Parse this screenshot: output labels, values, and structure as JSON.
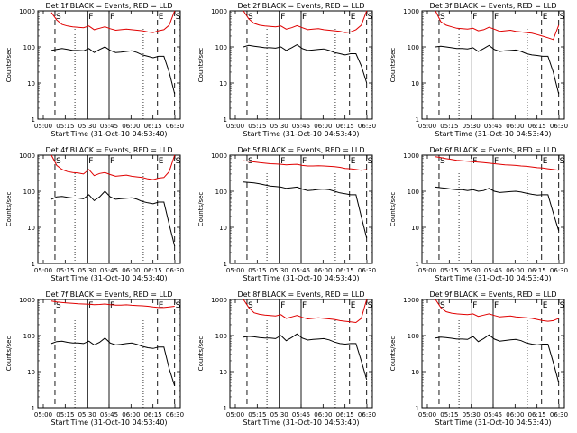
{
  "chart_data": [
    {
      "title": "Det 1f BLACK = Events, RED = LLD",
      "xlabel": "Start Time (31-Oct-10 04:53:40)",
      "ylabel": "Counts/sec",
      "x_ticks": [
        "05:00",
        "05:15",
        "05:30",
        "05:45",
        "06:00",
        "06:15",
        "06:30"
      ],
      "y_ticks": [
        "1",
        "10",
        "100",
        "1000"
      ],
      "yscale": "log",
      "ylim": [
        1,
        1000
      ],
      "type": "line",
      "markers": [
        "S",
        "F",
        "F",
        "E",
        "S"
      ],
      "series": [
        {
          "color": "#e00000",
          "values": [
            900,
            560,
            420,
            380,
            360,
            350,
            340,
            380,
            300,
            330,
            360,
            320,
            290,
            300,
            310,
            300,
            290,
            280,
            260,
            250,
            280,
            300,
            400,
            1000
          ]
        },
        {
          "color": "#000000",
          "values": [
            80,
            85,
            90,
            85,
            80,
            80,
            78,
            90,
            70,
            85,
            100,
            80,
            70,
            72,
            75,
            78,
            70,
            60,
            55,
            50,
            55,
            55,
            20,
            5
          ]
        }
      ]
    },
    {
      "title": "Det 2f BLACK = Events, RED = LLD",
      "xlabel": "Start Time (31-Oct-10 04:53:40)",
      "ylabel": "Counts/sec",
      "x_ticks": [
        "05:00",
        "05:15",
        "05:30",
        "05:45",
        "06:00",
        "06:15",
        "06:30"
      ],
      "y_ticks": [
        "1",
        "10",
        "100",
        "1000"
      ],
      "yscale": "log",
      "ylim": [
        1,
        1000
      ],
      "type": "line",
      "markers": [
        "S",
        "F",
        "F",
        "E",
        "S"
      ],
      "series": [
        {
          "color": "#e00000",
          "values": [
            1000,
            600,
            450,
            400,
            380,
            370,
            360,
            380,
            310,
            340,
            390,
            340,
            300,
            310,
            320,
            300,
            290,
            280,
            270,
            250,
            260,
            300,
            400,
            1000
          ]
        },
        {
          "color": "#000000",
          "values": [
            100,
            110,
            105,
            100,
            95,
            95,
            92,
            100,
            80,
            95,
            115,
            90,
            80,
            82,
            85,
            88,
            80,
            70,
            65,
            60,
            65,
            65,
            30,
            10
          ]
        }
      ]
    },
    {
      "title": "Det 3f BLACK = Events, RED = LLD",
      "xlabel": "Start Time (31-Oct-10 04:53:40)",
      "ylabel": "Counts/sec",
      "x_ticks": [
        "05:00",
        "05:15",
        "05:30",
        "05:45",
        "06:00",
        "06:15",
        "06:30"
      ],
      "y_ticks": [
        "1",
        "10",
        "100",
        "1000"
      ],
      "yscale": "log",
      "ylim": [
        1,
        1000
      ],
      "type": "line",
      "markers": [
        "S",
        "F",
        "F",
        "E",
        "S"
      ],
      "series": [
        {
          "color": "#e00000",
          "values": [
            1000,
            500,
            400,
            360,
            330,
            320,
            310,
            330,
            280,
            300,
            350,
            310,
            270,
            280,
            290,
            270,
            260,
            250,
            240,
            220,
            200,
            180,
            160,
            400
          ]
        },
        {
          "color": "#000000",
          "values": [
            100,
            105,
            100,
            95,
            90,
            90,
            88,
            95,
            75,
            90,
            110,
            85,
            75,
            78,
            80,
            82,
            75,
            65,
            60,
            58,
            55,
            55,
            20,
            5
          ]
        }
      ]
    },
    {
      "title": "Det 4f BLACK = Events, RED = LLD",
      "xlabel": "Start Time (31-Oct-10 04:53:40)",
      "ylabel": "Counts/sec",
      "x_ticks": [
        "05:00",
        "05:15",
        "05:30",
        "05:45",
        "06:00",
        "06:15",
        "06:30"
      ],
      "y_ticks": [
        "1",
        "10",
        "100",
        "1000"
      ],
      "yscale": "log",
      "ylim": [
        1,
        1000
      ],
      "type": "line",
      "markers": [
        "S",
        "F",
        "F",
        "E",
        "S"
      ],
      "series": [
        {
          "color": "#e00000",
          "values": [
            1000,
            520,
            400,
            350,
            330,
            320,
            300,
            400,
            270,
            310,
            330,
            290,
            260,
            270,
            280,
            260,
            250,
            240,
            220,
            210,
            230,
            240,
            350,
            1000
          ]
        },
        {
          "color": "#000000",
          "values": [
            60,
            70,
            72,
            68,
            65,
            65,
            62,
            80,
            55,
            70,
            100,
            70,
            60,
            62,
            64,
            66,
            60,
            52,
            48,
            45,
            50,
            50,
            12,
            3
          ]
        }
      ]
    },
    {
      "title": "Det 5f BLACK = Events, RED = LLD",
      "xlabel": "Start Time (31-Oct-10 04:53:40)",
      "ylabel": "Counts/sec",
      "x_ticks": [
        "05:00",
        "05:15",
        "05:30",
        "05:45",
        "06:00",
        "06:15",
        "06:30"
      ],
      "y_ticks": [
        "1",
        "10",
        "100",
        "1000"
      ],
      "yscale": "log",
      "ylim": [
        1,
        1000
      ],
      "type": "line",
      "markers": [
        "S",
        "F",
        "F",
        "E",
        "S"
      ],
      "series": [
        {
          "color": "#e00000",
          "values": [
            700,
            680,
            650,
            620,
            600,
            580,
            570,
            560,
            540,
            550,
            560,
            520,
            500,
            500,
            510,
            500,
            490,
            480,
            460,
            430,
            420,
            400,
            380,
            400
          ]
        },
        {
          "color": "#000000",
          "values": [
            180,
            175,
            170,
            160,
            150,
            140,
            135,
            130,
            120,
            125,
            130,
            115,
            105,
            108,
            112,
            115,
            110,
            100,
            90,
            85,
            80,
            80,
            20,
            5
          ]
        }
      ]
    },
    {
      "title": "Det 6f BLACK = Events, RED = LLD",
      "xlabel": "Start Time (31-Oct-10 04:53:40)",
      "ylabel": "Counts/sec",
      "x_ticks": [
        "05:00",
        "05:15",
        "05:30",
        "05:45",
        "06:00",
        "06:15",
        "06:30"
      ],
      "y_ticks": [
        "1",
        "10",
        "100",
        "1000"
      ],
      "yscale": "log",
      "ylim": [
        1,
        1000
      ],
      "type": "line",
      "markers": [
        "S",
        "F",
        "F",
        "E",
        "S"
      ],
      "series": [
        {
          "color": "#e00000",
          "values": [
            900,
            850,
            800,
            760,
            720,
            700,
            680,
            660,
            640,
            620,
            600,
            580,
            560,
            540,
            530,
            520,
            500,
            490,
            470,
            450,
            440,
            420,
            400,
            380
          ]
        },
        {
          "color": "#000000",
          "values": [
            130,
            125,
            120,
            115,
            110,
            110,
            105,
            110,
            100,
            105,
            120,
            100,
            92,
            95,
            98,
            100,
            95,
            88,
            82,
            78,
            80,
            80,
            25,
            8
          ]
        }
      ]
    },
    {
      "title": "Det 7f BLACK = Events, RED = LLD",
      "xlabel": "Start Time (31-Oct-10 04:53:40)",
      "ylabel": "Counts/sec",
      "x_ticks": [
        "05:00",
        "05:15",
        "05:30",
        "05:45",
        "06:00",
        "06:15",
        "06:30"
      ],
      "y_ticks": [
        "1",
        "10",
        "100",
        "1000"
      ],
      "yscale": "log",
      "ylim": [
        1,
        1000
      ],
      "type": "line",
      "markers": [
        "S",
        "F",
        "F",
        "E",
        "S"
      ],
      "series": [
        {
          "color": "#e00000",
          "values": [
            900,
            850,
            820,
            800,
            780,
            760,
            750,
            740,
            720,
            730,
            750,
            720,
            700,
            700,
            710,
            690,
            680,
            670,
            650,
            620,
            600,
            600,
            620,
            650
          ]
        },
        {
          "color": "#000000",
          "values": [
            60,
            68,
            70,
            65,
            62,
            62,
            60,
            70,
            55,
            65,
            85,
            62,
            55,
            57,
            60,
            62,
            57,
            50,
            46,
            44,
            48,
            48,
            12,
            4
          ]
        }
      ]
    },
    {
      "title": "Det 8f BLACK = Events, RED = LLD",
      "xlabel": "Start Time (31-Oct-10 04:53:40)",
      "ylabel": "Counts/sec",
      "x_ticks": [
        "05:00",
        "05:15",
        "05:30",
        "05:45",
        "06:00",
        "06:15",
        "06:30"
      ],
      "y_ticks": [
        "1",
        "10",
        "100",
        "1000"
      ],
      "yscale": "log",
      "ylim": [
        1,
        1000
      ],
      "type": "line",
      "markers": [
        "S",
        "F",
        "F",
        "E",
        "S"
      ],
      "series": [
        {
          "color": "#e00000",
          "values": [
            1000,
            600,
            430,
            390,
            370,
            360,
            350,
            380,
            300,
            330,
            360,
            320,
            290,
            300,
            310,
            300,
            290,
            280,
            260,
            250,
            240,
            230,
            300,
            1000
          ]
        },
        {
          "color": "#000000",
          "values": [
            90,
            95,
            92,
            88,
            85,
            85,
            82,
            100,
            72,
            88,
            110,
            85,
            75,
            78,
            80,
            82,
            76,
            66,
            60,
            58,
            60,
            60,
            20,
            6
          ]
        }
      ]
    },
    {
      "title": "Det 9f BLACK = Events, RED = LLD",
      "xlabel": "Start Time (31-Oct-10 04:53:40)",
      "ylabel": "Counts/sec",
      "x_ticks": [
        "05:00",
        "05:15",
        "05:30",
        "05:45",
        "06:00",
        "06:15",
        "06:30"
      ],
      "y_ticks": [
        "1",
        "10",
        "100",
        "1000"
      ],
      "yscale": "log",
      "ylim": [
        1,
        1000
      ],
      "type": "line",
      "markers": [
        "S",
        "F",
        "F",
        "E",
        "S"
      ],
      "series": [
        {
          "color": "#e00000",
          "values": [
            1000,
            600,
            460,
            420,
            400,
            390,
            380,
            400,
            340,
            370,
            400,
            360,
            330,
            340,
            350,
            330,
            320,
            310,
            300,
            280,
            260,
            250,
            260,
            300
          ]
        },
        {
          "color": "#000000",
          "values": [
            85,
            90,
            88,
            84,
            80,
            80,
            78,
            95,
            68,
            82,
            105,
            80,
            70,
            73,
            76,
            78,
            72,
            62,
            58,
            55,
            58,
            58,
            18,
            5
          ]
        }
      ]
    }
  ]
}
